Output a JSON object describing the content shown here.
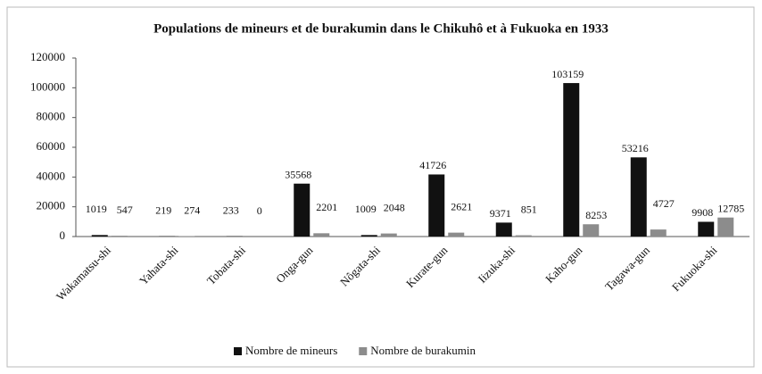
{
  "chart_data": {
    "type": "bar",
    "title": "Populations de mineurs et de burakumin dans le Chikuhô et à Fukuoka en 1933",
    "categories": [
      "Wakamatsu-shi",
      "Yahata-shi",
      "Tobata-shi",
      "Onga-gun",
      "Nôgata-shi",
      "Kurate-gun",
      "Iizuka-shi",
      "Kaho-gun",
      "Tagawa-gun",
      "Fukuoka-shi"
    ],
    "series": [
      {
        "name": "Nombre de mineurs",
        "color": "#111111",
        "values": [
          1019,
          219,
          233,
          35568,
          1009,
          41726,
          9371,
          103159,
          53216,
          9908
        ]
      },
      {
        "name": "Nombre de burakumin",
        "color": "#8c8c8c",
        "values": [
          547,
          274,
          0,
          2201,
          2048,
          2621,
          851,
          8253,
          4727,
          12785
        ]
      }
    ],
    "ylim": [
      0,
      120000
    ],
    "yticks": [
      0,
      20000,
      40000,
      60000,
      80000,
      100000,
      120000
    ],
    "legend": "bottom"
  }
}
